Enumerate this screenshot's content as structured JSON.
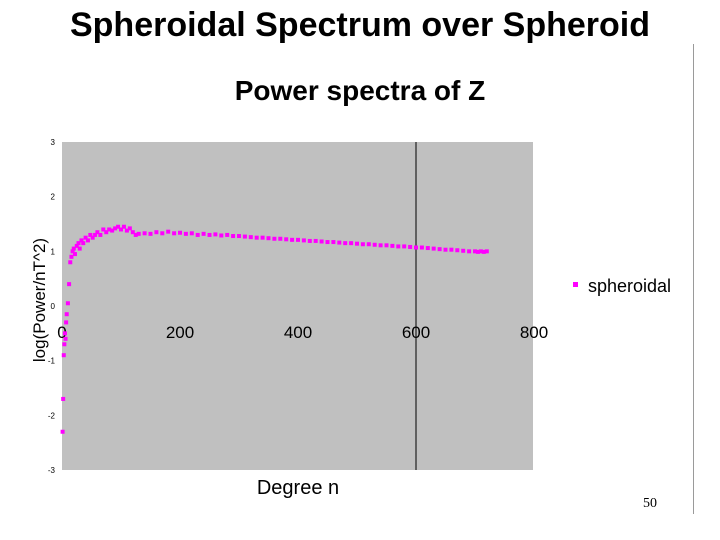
{
  "slide": {
    "title": "Spheroidal Spectrum over Spheroid",
    "page_number": "50"
  },
  "colors": {
    "plot_background": "#c0c0c0",
    "series": "#ff00ff",
    "reference_line": "#000000"
  },
  "chart_data": {
    "type": "scatter",
    "title": "Power spectra of Z",
    "xlabel": "Degree n",
    "ylabel": "log(Power/nT^2)",
    "xlim": [
      0,
      800
    ],
    "ylim": [
      -3,
      3
    ],
    "x_ticks": [
      0,
      200,
      400,
      600,
      800
    ],
    "x_tick_labels": [
      "0",
      "200",
      "400",
      "600",
      "800"
    ],
    "y_ticks": [
      -3,
      -2,
      -1,
      0,
      1,
      2,
      3
    ],
    "y_tick_labels": [
      "-3",
      "-2",
      "-1",
      "0",
      "1",
      "2",
      "3"
    ],
    "grid": false,
    "legend": "right",
    "reference_x": 600,
    "series": [
      {
        "name": "spheroidal",
        "points": [
          [
            1,
            -2.3
          ],
          [
            2,
            -1.7
          ],
          [
            3,
            -0.9
          ],
          [
            4,
            -0.7
          ],
          [
            5,
            -0.5
          ],
          [
            6,
            -0.6
          ],
          [
            7,
            -0.3
          ],
          [
            8,
            -0.15
          ],
          [
            10,
            0.05
          ],
          [
            12,
            0.4
          ],
          [
            14,
            0.8
          ],
          [
            16,
            0.9
          ],
          [
            18,
            1.0
          ],
          [
            20,
            1.05
          ],
          [
            22,
            0.95
          ],
          [
            25,
            1.1
          ],
          [
            28,
            1.15
          ],
          [
            30,
            1.05
          ],
          [
            33,
            1.2
          ],
          [
            36,
            1.15
          ],
          [
            40,
            1.25
          ],
          [
            44,
            1.2
          ],
          [
            48,
            1.3
          ],
          [
            52,
            1.25
          ],
          [
            56,
            1.3
          ],
          [
            60,
            1.35
          ],
          [
            65,
            1.3
          ],
          [
            70,
            1.4
          ],
          [
            75,
            1.35
          ],
          [
            80,
            1.4
          ],
          [
            85,
            1.38
          ],
          [
            90,
            1.42
          ],
          [
            95,
            1.45
          ],
          [
            100,
            1.4
          ],
          [
            105,
            1.45
          ],
          [
            110,
            1.38
          ],
          [
            115,
            1.42
          ],
          [
            120,
            1.35
          ],
          [
            125,
            1.3
          ],
          [
            130,
            1.32
          ],
          [
            140,
            1.33
          ],
          [
            150,
            1.32
          ],
          [
            160,
            1.35
          ],
          [
            170,
            1.33
          ],
          [
            180,
            1.36
          ],
          [
            190,
            1.33
          ],
          [
            200,
            1.34
          ],
          [
            210,
            1.32
          ],
          [
            220,
            1.33
          ],
          [
            230,
            1.3
          ],
          [
            240,
            1.32
          ],
          [
            250,
            1.3
          ],
          [
            260,
            1.31
          ],
          [
            270,
            1.29
          ],
          [
            280,
            1.3
          ],
          [
            290,
            1.28
          ],
          [
            300,
            1.28
          ],
          [
            310,
            1.27
          ],
          [
            320,
            1.26
          ],
          [
            330,
            1.25
          ],
          [
            340,
            1.25
          ],
          [
            350,
            1.24
          ],
          [
            360,
            1.23
          ],
          [
            370,
            1.23
          ],
          [
            380,
            1.22
          ],
          [
            390,
            1.21
          ],
          [
            400,
            1.21
          ],
          [
            410,
            1.2
          ],
          [
            420,
            1.19
          ],
          [
            430,
            1.19
          ],
          [
            440,
            1.18
          ],
          [
            450,
            1.17
          ],
          [
            460,
            1.17
          ],
          [
            470,
            1.16
          ],
          [
            480,
            1.15
          ],
          [
            490,
            1.15
          ],
          [
            500,
            1.14
          ],
          [
            510,
            1.13
          ],
          [
            520,
            1.13
          ],
          [
            530,
            1.12
          ],
          [
            540,
            1.11
          ],
          [
            550,
            1.11
          ],
          [
            560,
            1.1
          ],
          [
            570,
            1.09
          ],
          [
            580,
            1.09
          ],
          [
            590,
            1.08
          ],
          [
            600,
            1.07
          ],
          [
            610,
            1.07
          ],
          [
            620,
            1.06
          ],
          [
            630,
            1.05
          ],
          [
            640,
            1.04
          ],
          [
            650,
            1.03
          ],
          [
            660,
            1.03
          ],
          [
            670,
            1.02
          ],
          [
            680,
            1.01
          ],
          [
            690,
            1.0
          ],
          [
            700,
            1.0
          ],
          [
            705,
            0.99
          ],
          [
            710,
            1.0
          ],
          [
            715,
            0.99
          ],
          [
            720,
            1.0
          ]
        ]
      }
    ]
  }
}
